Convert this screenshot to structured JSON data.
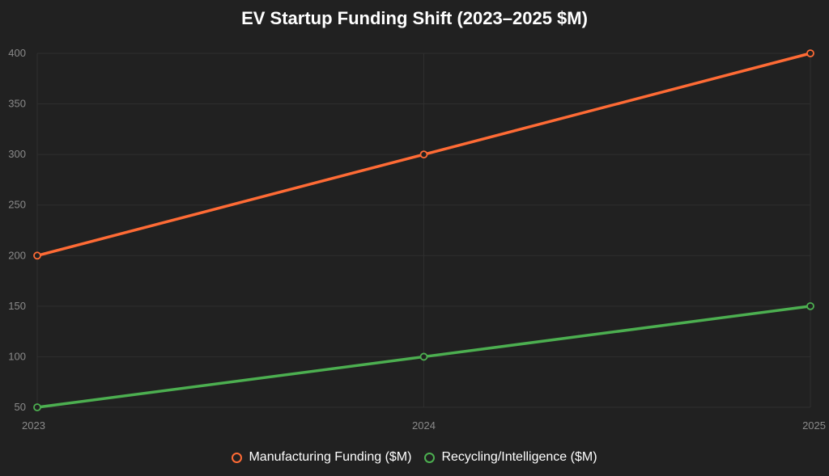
{
  "chart_data": {
    "type": "line",
    "title": "EV Startup Funding Shift (2023–2025 $M)",
    "xlabel": "",
    "ylabel": "",
    "categories": [
      "2023",
      "2024",
      "2025"
    ],
    "yticks": [
      "50",
      "100",
      "150",
      "200",
      "250",
      "300",
      "350",
      "400"
    ],
    "ylim": [
      50,
      400
    ],
    "grid": true,
    "legend_position": "bottom",
    "series": [
      {
        "name": "Manufacturing Funding ($M)",
        "values": [
          200,
          300,
          400
        ],
        "color": "#ff6b35"
      },
      {
        "name": "Recycling/Intelligence ($M)",
        "values": [
          50,
          100,
          150
        ],
        "color": "#4caf50"
      }
    ]
  }
}
